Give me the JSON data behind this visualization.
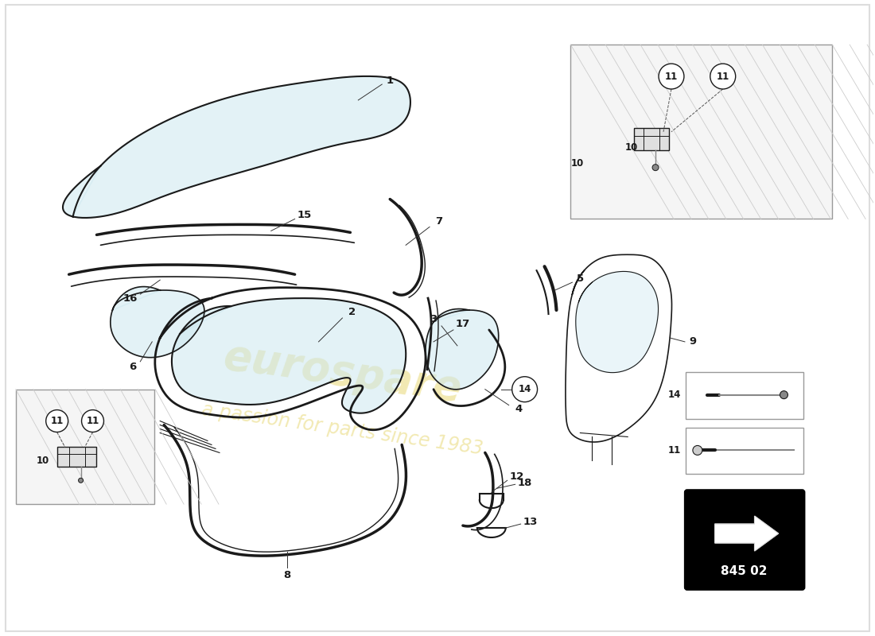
{
  "background_color": "#ffffff",
  "part_number": "845 02",
  "glass_color": "#cce8f0",
  "glass_alpha": 0.55,
  "line_color": "#1a1a1a",
  "watermark_color_main": "#d4b800",
  "watermark_color_sub": "#d4a800"
}
